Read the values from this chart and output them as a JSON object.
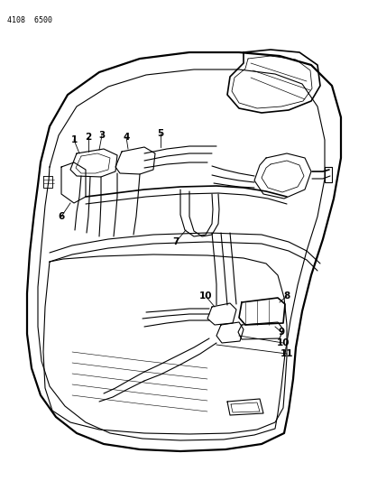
{
  "title_code": "4108 6500",
  "bg": "#ffffff",
  "lc": "#000000",
  "fig_w": 4.08,
  "fig_h": 5.33,
  "dpi": 100
}
